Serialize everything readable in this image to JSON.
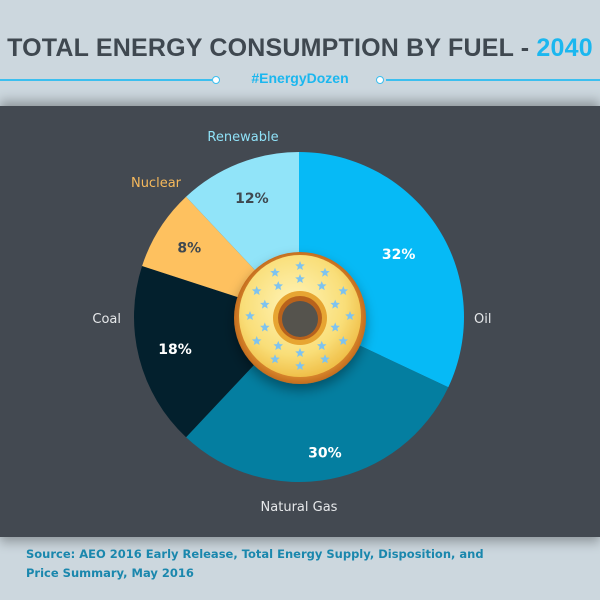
{
  "header": {
    "title_main": "TOTAL ENERGY CONSUMPTION BY FUEL - ",
    "title_year": "2040",
    "hashtag": "#EnergyDozen"
  },
  "footer": {
    "source": "Source: AEO 2016 Early Release, Total Energy Supply, Disposition, and Price Summary, May 2016"
  },
  "chart_data": {
    "type": "pie",
    "title": "TOTAL ENERGY CONSUMPTION BY FUEL - 2040",
    "unit": "%",
    "start": "12 o'clock, clockwise",
    "slices": [
      {
        "label": "Oil",
        "value": 32,
        "value_label": "32%",
        "color": "#06baf6",
        "label_color": "#e6e8ea",
        "value_color": "#ffffff"
      },
      {
        "label": "Natural Gas",
        "value": 30,
        "value_label": "30%",
        "color": "#047ea0",
        "label_color": "#e6e8ea",
        "value_color": "#ffffff"
      },
      {
        "label": "Coal",
        "value": 18,
        "value_label": "18%",
        "color": "#03202d",
        "label_color": "#e6e8ea",
        "value_color": "#ffffff"
      },
      {
        "label": "Nuclear",
        "value": 8,
        "value_label": "8%",
        "color": "#fec15f",
        "label_color": "#f6b95c",
        "value_color": "#3f4850"
      },
      {
        "label": "Renewable",
        "value": 12,
        "value_label": "12%",
        "color": "#91e4f9",
        "label_color": "#8fe1f7",
        "value_color": "#3f4850"
      }
    ],
    "center_graphic": "donut-with-star-sprinkles"
  }
}
